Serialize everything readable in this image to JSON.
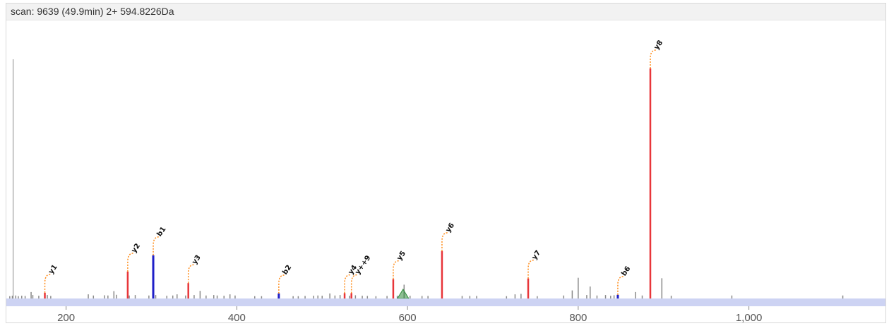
{
  "header": {
    "title": "scan: 9639 (49.9min) 2+ 594.8226Da"
  },
  "colors": {
    "y_ion": "#e8363a",
    "b_ion": "#1f1fc8",
    "unmatched": "#8a8a8a",
    "precursor": "#2e8b3a",
    "axis_band": "#cdd3f3",
    "leader": "#ff8c1a"
  },
  "chart_data": {
    "type": "bar",
    "title": "",
    "xlabel": "",
    "ylabel": "",
    "xlim": [
      130,
      1160
    ],
    "ylim": [
      0,
      100
    ],
    "x_ticks": [
      200,
      400,
      600,
      800,
      1000
    ],
    "x_tick_labels": [
      "200",
      "400",
      "600",
      "800",
      "1,000"
    ],
    "annotated_peaks": [
      {
        "label": "y1",
        "ion": "y",
        "mz": 175.1,
        "intensity": 2.5
      },
      {
        "label": "y2",
        "ion": "y",
        "mz": 272.2,
        "intensity": 11.7
      },
      {
        "label": "b1",
        "ion": "b",
        "mz": 302.1,
        "intensity": 18.8
      },
      {
        "label": "y3",
        "ion": "y",
        "mz": 343.2,
        "intensity": 6.7
      },
      {
        "label": "b2",
        "ion": "b",
        "mz": 449.2,
        "intensity": 2.2
      },
      {
        "label": "y4",
        "ion": "y",
        "mz": 526.3,
        "intensity": 2.3
      },
      {
        "label": "y++9",
        "ion": "y",
        "mz": 534.3,
        "intensity": 2.3
      },
      {
        "label": "y5",
        "ion": "y",
        "mz": 583.3,
        "intensity": 8.4
      },
      {
        "label": "y6",
        "ion": "y",
        "mz": 640.4,
        "intensity": 20.6
      },
      {
        "label": "y7",
        "ion": "y",
        "mz": 741.4,
        "intensity": 8.7
      },
      {
        "label": "b6",
        "ion": "b",
        "mz": 846.4,
        "intensity": 1.6
      },
      {
        "label": "y8",
        "ion": "y",
        "mz": 884.5,
        "intensity": 100
      }
    ],
    "precursor": {
      "mz": 594.8,
      "intensity": 4
    },
    "unannotated_peaks": [
      {
        "mz": 138,
        "intensity": 104
      },
      {
        "mz": 134,
        "intensity": 1
      },
      {
        "mz": 137,
        "intensity": 1.2
      },
      {
        "mz": 141,
        "intensity": 1.3
      },
      {
        "mz": 144,
        "intensity": 1
      },
      {
        "mz": 148,
        "intensity": 1.2
      },
      {
        "mz": 152,
        "intensity": 1.1
      },
      {
        "mz": 159,
        "intensity": 2.8
      },
      {
        "mz": 161,
        "intensity": 1.5
      },
      {
        "mz": 168,
        "intensity": 1.2
      },
      {
        "mz": 178,
        "intensity": 1.5
      },
      {
        "mz": 182,
        "intensity": 1.1
      },
      {
        "mz": 226,
        "intensity": 1.8
      },
      {
        "mz": 232,
        "intensity": 1.3
      },
      {
        "mz": 245,
        "intensity": 1.4
      },
      {
        "mz": 249,
        "intensity": 1.3
      },
      {
        "mz": 256,
        "intensity": 3.2
      },
      {
        "mz": 259,
        "intensity": 1.6
      },
      {
        "mz": 274,
        "intensity": 1.3
      },
      {
        "mz": 281,
        "intensity": 1.5
      },
      {
        "mz": 297,
        "intensity": 1.3
      },
      {
        "mz": 305,
        "intensity": 1.5
      },
      {
        "mz": 318,
        "intensity": 1.2
      },
      {
        "mz": 325,
        "intensity": 1.3
      },
      {
        "mz": 330,
        "intensity": 1.8
      },
      {
        "mz": 340,
        "intensity": 1.3
      },
      {
        "mz": 350,
        "intensity": 1.5
      },
      {
        "mz": 357,
        "intensity": 3.3
      },
      {
        "mz": 364,
        "intensity": 1.3
      },
      {
        "mz": 373,
        "intensity": 1.5
      },
      {
        "mz": 377,
        "intensity": 1.3
      },
      {
        "mz": 385,
        "intensity": 1.2
      },
      {
        "mz": 392,
        "intensity": 1.8
      },
      {
        "mz": 398,
        "intensity": 1.3
      },
      {
        "mz": 421,
        "intensity": 1
      },
      {
        "mz": 429,
        "intensity": 1
      },
      {
        "mz": 466,
        "intensity": 1
      },
      {
        "mz": 472,
        "intensity": 1
      },
      {
        "mz": 480,
        "intensity": 1.1
      },
      {
        "mz": 490,
        "intensity": 1.2
      },
      {
        "mz": 495,
        "intensity": 1.3
      },
      {
        "mz": 500,
        "intensity": 1.2
      },
      {
        "mz": 509,
        "intensity": 2.2
      },
      {
        "mz": 515,
        "intensity": 1.3
      },
      {
        "mz": 521,
        "intensity": 1.5
      },
      {
        "mz": 532,
        "intensity": 1.2
      },
      {
        "mz": 539,
        "intensity": 1.4
      },
      {
        "mz": 547,
        "intensity": 1.2
      },
      {
        "mz": 553,
        "intensity": 1.1
      },
      {
        "mz": 563,
        "intensity": 1
      },
      {
        "mz": 576,
        "intensity": 1.1
      },
      {
        "mz": 588,
        "intensity": 1.2
      },
      {
        "mz": 596,
        "intensity": 6
      },
      {
        "mz": 603,
        "intensity": 1.2
      },
      {
        "mz": 617,
        "intensity": 1.1
      },
      {
        "mz": 624,
        "intensity": 1.1
      },
      {
        "mz": 664,
        "intensity": 1.1
      },
      {
        "mz": 673,
        "intensity": 1.1
      },
      {
        "mz": 681,
        "intensity": 1.1
      },
      {
        "mz": 716,
        "intensity": 1
      },
      {
        "mz": 726,
        "intensity": 1.8
      },
      {
        "mz": 733,
        "intensity": 2
      },
      {
        "mz": 752,
        "intensity": 1
      },
      {
        "mz": 783,
        "intensity": 1.3
      },
      {
        "mz": 793,
        "intensity": 3.5
      },
      {
        "mz": 800,
        "intensity": 9
      },
      {
        "mz": 810,
        "intensity": 1.5
      },
      {
        "mz": 814,
        "intensity": 5.2
      },
      {
        "mz": 822,
        "intensity": 1.3
      },
      {
        "mz": 832,
        "intensity": 1.5
      },
      {
        "mz": 838,
        "intensity": 1.2
      },
      {
        "mz": 842,
        "intensity": 1.4
      },
      {
        "mz": 867,
        "intensity": 2.8
      },
      {
        "mz": 875,
        "intensity": 1.3
      },
      {
        "mz": 898,
        "intensity": 8.8
      },
      {
        "mz": 909,
        "intensity": 1.2
      },
      {
        "mz": 980,
        "intensity": 1.3
      },
      {
        "mz": 1110,
        "intensity": 1.3
      }
    ]
  }
}
